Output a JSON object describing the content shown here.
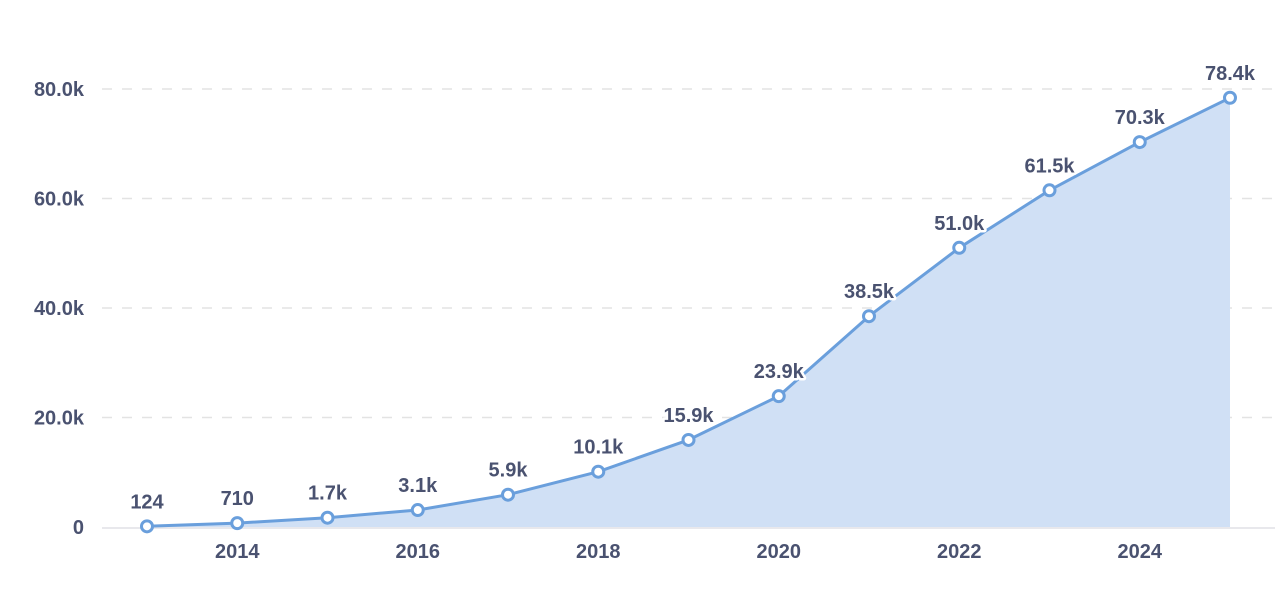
{
  "chart_data": {
    "type": "area",
    "title": "",
    "xlabel": "",
    "ylabel": "",
    "x": [
      2013,
      2014,
      2015,
      2016,
      2017,
      2018,
      2019,
      2020,
      2021,
      2022,
      2023,
      2024,
      2025
    ],
    "values": [
      124,
      710,
      1700,
      3100,
      5900,
      10100,
      15900,
      23900,
      38500,
      51000,
      61500,
      70300,
      78400
    ],
    "data_labels": [
      "124",
      "710",
      "1.7k",
      "3.1k",
      "5.9k",
      "10.1k",
      "15.9k",
      "23.9k",
      "38.5k",
      "51.0k",
      "61.5k",
      "70.3k",
      "78.4k"
    ],
    "x_ticks": [
      2014,
      2016,
      2018,
      2020,
      2022,
      2024
    ],
    "x_tick_labels": [
      "2014",
      "2016",
      "2018",
      "2020",
      "2022",
      "2024"
    ],
    "y_ticks": [
      0,
      20000,
      40000,
      60000,
      80000
    ],
    "y_tick_labels": [
      "0",
      "20.0k",
      "40.0k",
      "60.0k",
      "80.0k"
    ],
    "xlim": [
      2013,
      2025
    ],
    "ylim": [
      0,
      80000
    ],
    "grid": "horizontal-dashed",
    "legend": null,
    "colors": {
      "line": "#6a9fdc",
      "fill": "#d0e0f5",
      "marker_fill": "#ffffff",
      "text": "#4a5270",
      "grid": "#e3e3e3",
      "baseline": "#e8e8ec"
    }
  }
}
